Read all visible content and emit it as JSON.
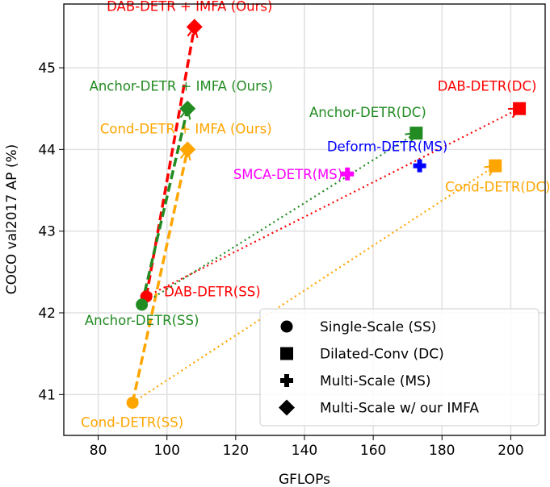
{
  "chart_data": {
    "type": "scatter",
    "xlabel": "GFLOPs",
    "ylabel": "COCO val2017 AP (%)",
    "xlim": [
      70,
      210
    ],
    "ylim": [
      40.5,
      45.78
    ],
    "xticks": [
      80,
      100,
      120,
      140,
      160,
      180,
      200
    ],
    "yticks": [
      41,
      42,
      43,
      44,
      45
    ],
    "grid": true,
    "points": [
      {
        "label": "DAB-DETR(SS)",
        "x": 94,
        "y": 42.2,
        "color": "#ff0000",
        "marker": "circle"
      },
      {
        "label": "Anchor-DETR(SS)",
        "x": 92.7,
        "y": 42.1,
        "color": "#228b22",
        "marker": "circle"
      },
      {
        "label": "Cond-DETR(SS)",
        "x": 90,
        "y": 40.9,
        "color": "#ffa500",
        "marker": "circle"
      },
      {
        "label": "DAB-DETR + IMFA (Ours)",
        "x": 108,
        "y": 45.5,
        "color": "#ff0000",
        "marker": "diamond"
      },
      {
        "label": "Anchor-DETR + IMFA (Ours)",
        "x": 106,
        "y": 44.5,
        "color": "#228b22",
        "marker": "diamond"
      },
      {
        "label": "Cond-DETR + IMFA (Ours)",
        "x": 106,
        "y": 44.0,
        "color": "#ffa500",
        "marker": "diamond"
      },
      {
        "label": "Anchor-DETR(DC)",
        "x": 172.5,
        "y": 44.2,
        "color": "#228b22",
        "marker": "square"
      },
      {
        "label": "DAB-DETR(DC)",
        "x": 202.5,
        "y": 44.5,
        "color": "#ff0000",
        "marker": "square"
      },
      {
        "label": "Cond-DETR(DC)",
        "x": 195.5,
        "y": 43.8,
        "color": "#ffa500",
        "marker": "square"
      },
      {
        "label": "Deform-DETR(MS)",
        "x": 173.5,
        "y": 43.8,
        "color": "#0000ff",
        "marker": "plus"
      },
      {
        "label": "SMCA-DETR(MS)",
        "x": 152.5,
        "y": 43.7,
        "color": "#ff00ff",
        "marker": "plus"
      }
    ],
    "arrows": [
      {
        "from": 0,
        "to": 3,
        "style": "dashed"
      },
      {
        "from": 1,
        "to": 4,
        "style": "dashed"
      },
      {
        "from": 2,
        "to": 5,
        "style": "dashed"
      },
      {
        "from": 1,
        "to": 6,
        "style": "dotted"
      },
      {
        "from": 0,
        "to": 7,
        "style": "dotted"
      },
      {
        "from": 2,
        "to": 8,
        "style": "dotted"
      }
    ],
    "legend": {
      "placement": "lower-right",
      "entries": [
        {
          "marker": "circle",
          "label": "Single-Scale (SS)"
        },
        {
          "marker": "square",
          "label": "Dilated-Conv (DC)"
        },
        {
          "marker": "plus",
          "label": "Multi-Scale (MS)"
        },
        {
          "marker": "diamond",
          "label": "Multi-Scale w/ our IMFA"
        }
      ]
    }
  }
}
